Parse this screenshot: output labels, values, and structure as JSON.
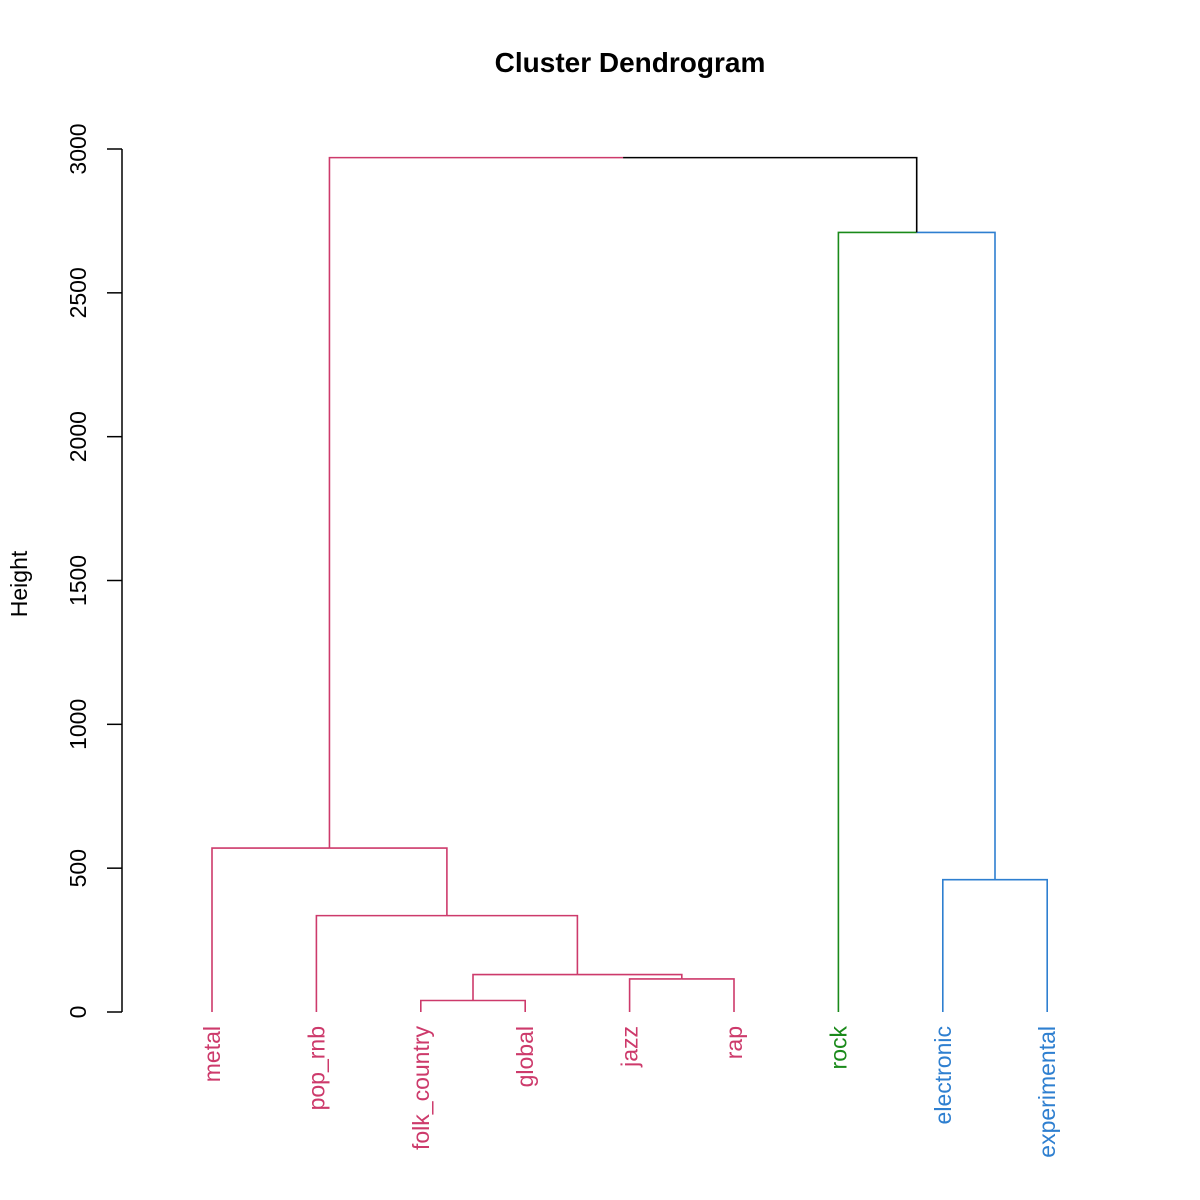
{
  "chart_data": {
    "type": "dendrogram",
    "title": "Cluster Dendrogram",
    "ylabel": "Height",
    "xlabel": "",
    "ylim": [
      0,
      3000
    ],
    "yticks": [
      0,
      500,
      1000,
      1500,
      2000,
      2500,
      3000
    ],
    "grid": false,
    "colors": {
      "group1": "#cd3a6b",
      "group2": "#1a8a1a",
      "group3": "#2e7fd0",
      "root": "#000000"
    },
    "leaves": [
      {
        "label": "metal",
        "group": "group1"
      },
      {
        "label": "pop_rnb",
        "group": "group1"
      },
      {
        "label": "folk_country",
        "group": "group1"
      },
      {
        "label": "global",
        "group": "group1"
      },
      {
        "label": "jazz",
        "group": "group1"
      },
      {
        "label": "rap",
        "group": "group1"
      },
      {
        "label": "rock",
        "group": "group2"
      },
      {
        "label": "electronic",
        "group": "group3"
      },
      {
        "label": "experimental",
        "group": "group3"
      }
    ],
    "merges": [
      {
        "left": "folk_country",
        "right": "global",
        "height": 40,
        "color": "group1"
      },
      {
        "left": "jazz",
        "right": "rap",
        "height": 115,
        "color": "group1"
      },
      {
        "left": "m1",
        "right": "m2",
        "height": 130,
        "color": "group1"
      },
      {
        "left": "pop_rnb",
        "right": "m3",
        "height": 335,
        "color": "group1"
      },
      {
        "left": "metal",
        "right": "m4",
        "height": 570,
        "color": "group1"
      },
      {
        "left": "electronic",
        "right": "experimental",
        "height": 460,
        "color": "group3"
      },
      {
        "left": "rock",
        "right": "m6",
        "height": 2710,
        "colors": [
          "group2",
          "group3"
        ]
      },
      {
        "left": "m5",
        "right": "m7",
        "height": 2970,
        "colors": [
          "group1",
          "root"
        ]
      }
    ]
  }
}
